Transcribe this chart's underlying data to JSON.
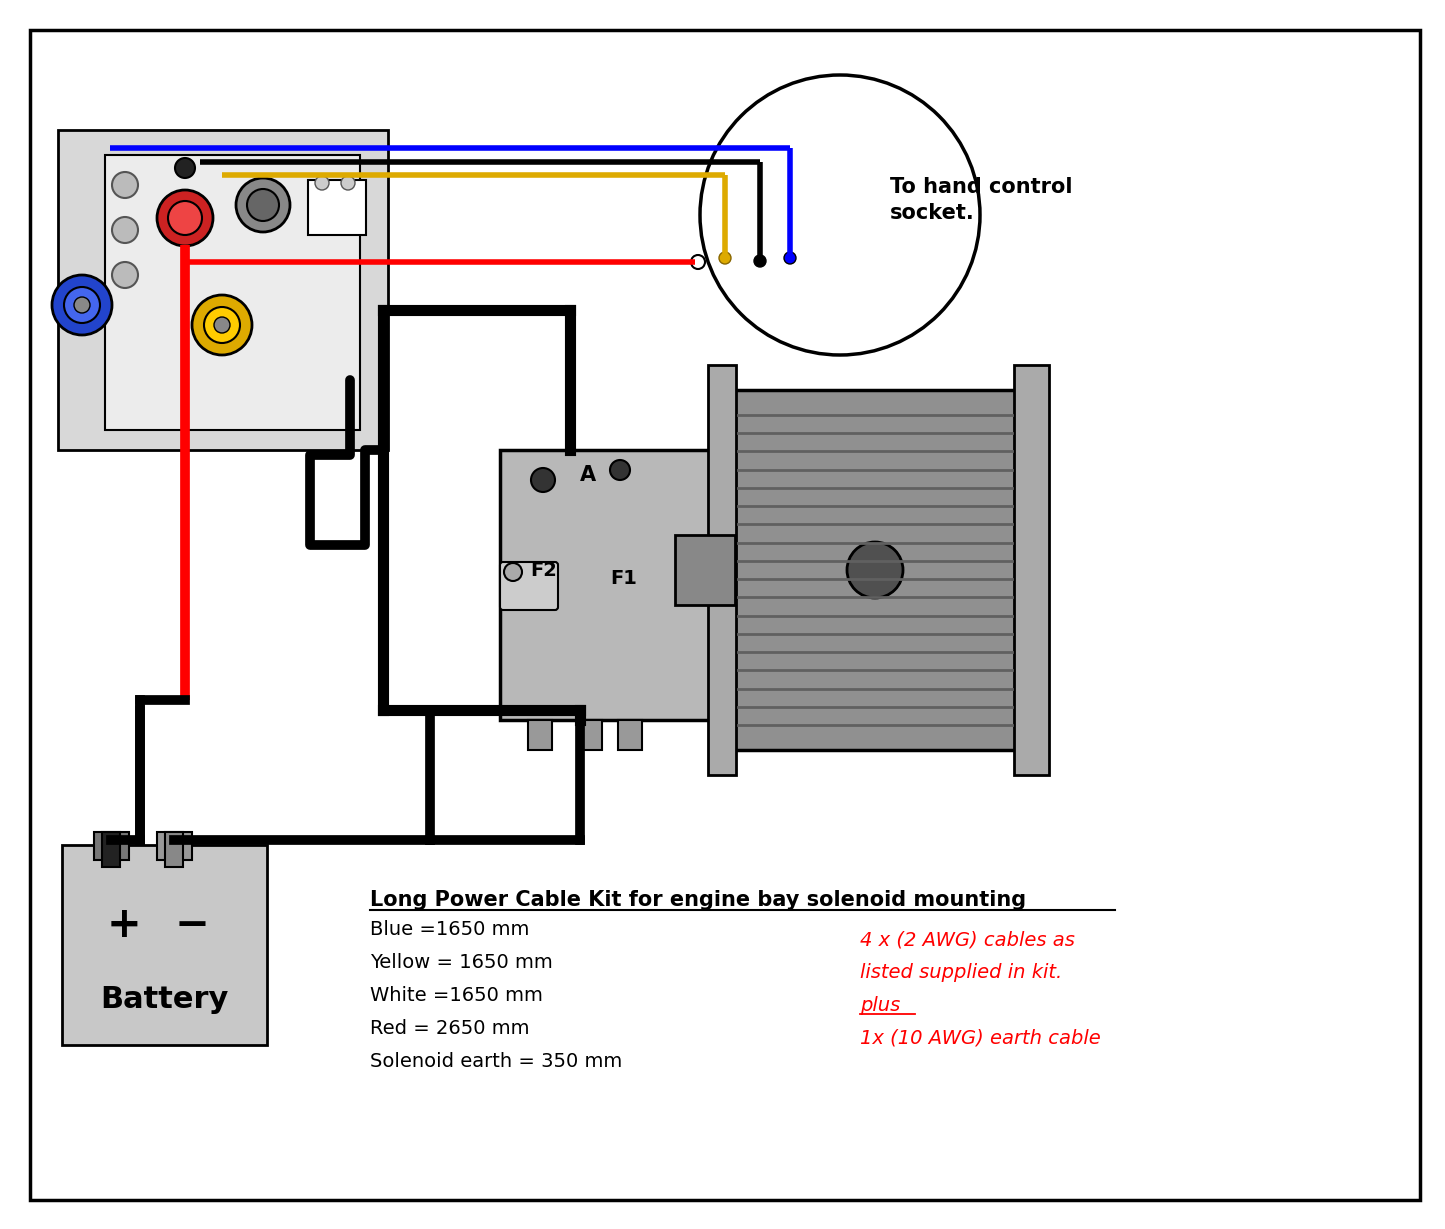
{
  "bg_color": "#ffffff",
  "title_text": "Long Power Cable Kit for engine bay solenoid mounting",
  "cable_list": [
    "Blue =1650 mm",
    "Yellow = 1650 mm",
    "White =1650 mm",
    "Red = 2650 mm",
    "Solenoid earth = 350 mm"
  ],
  "red_text_lines": [
    "4 x (2 AWG) cables as",
    "listed supplied in kit.",
    "plus",
    "1x (10 AWG) earth cable"
  ],
  "hand_control_text": "To hand control\nsocket.",
  "wire_lw": 4,
  "thick_lw": 7,
  "border_lw": 2.5
}
